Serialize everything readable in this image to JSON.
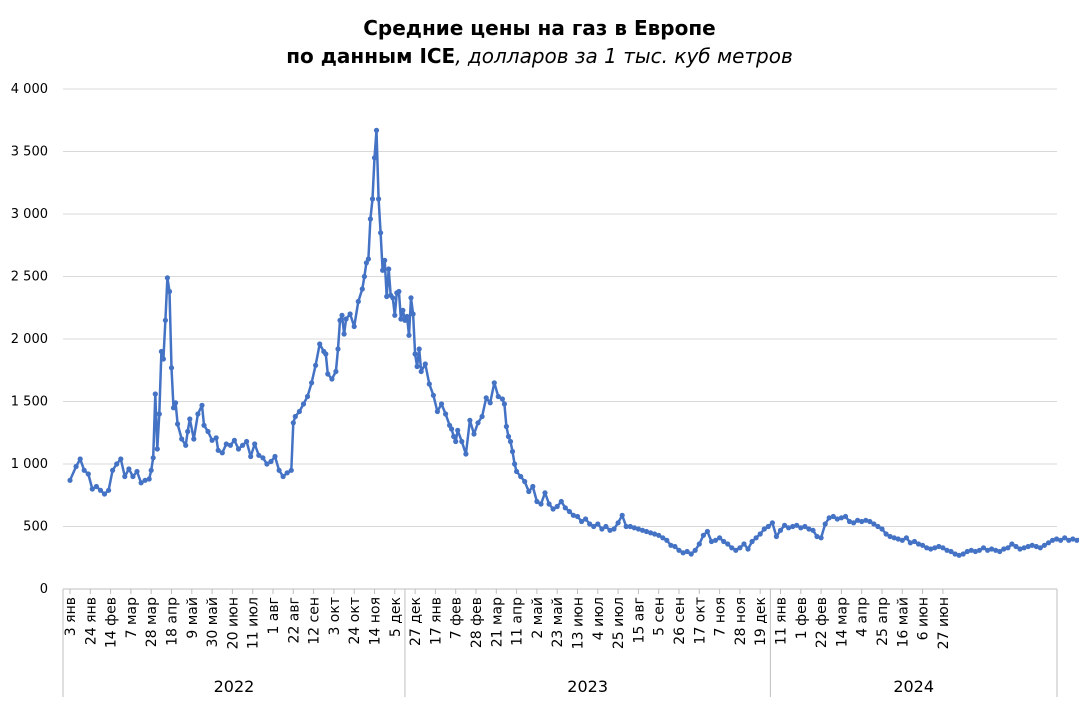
{
  "title": {
    "line1": "Средние цены на газ в Европе",
    "line2_bold": "по данным ICE",
    "line2_italic": ", долларов за 1 тыс. куб метров"
  },
  "colors": {
    "series": "#4472C4",
    "grid": "#D9D9D9",
    "axis": "#BFBFBF"
  },
  "chart_data": {
    "type": "line",
    "title": "Средние цены на газ в Европе по данным ICE, долларов за 1 тыс. куб метров",
    "xlabel": "",
    "ylabel": "",
    "ylim": [
      0,
      4000
    ],
    "yticks": [
      0,
      500,
      1000,
      1500,
      2000,
      2500,
      3000,
      3500,
      4000
    ],
    "ytick_labels": [
      "0",
      "500",
      "1 000",
      "1 500",
      "2 000",
      "2 500",
      "3 000",
      "3 500",
      "4 000"
    ],
    "grid": true,
    "legend": "none",
    "x_week_labels": [
      "3 янв",
      "24 янв",
      "14 фев",
      "7 мар",
      "28 мар",
      "18 апр",
      "9 май",
      "30 май",
      "20 июн",
      "11 июл",
      "1 авг",
      "22 авг",
      "12 сен",
      "3 окт",
      "24 окт",
      "14 ноя",
      "5 дек",
      "27 дек",
      "17 янв",
      "7 фев",
      "28 фев",
      "21 мар",
      "11 апр",
      "2 май",
      "23 май",
      "13 июн",
      "4 июл",
      "25 июл",
      "15 авг",
      "5 сен",
      "26 сен",
      "17 окт",
      "7 ноя",
      "28 ноя",
      "19 дек",
      "11 янв",
      "1 фев",
      "22 фев",
      "14 мар",
      "4 апр",
      "25 апр",
      "16 май",
      "6 июн",
      "27 июн"
    ],
    "years": [
      {
        "label": "2022",
        "from_label": 0,
        "to_label": 17
      },
      {
        "label": "2023",
        "from_label": 17,
        "to_label": 35
      },
      {
        "label": "2024",
        "from_label": 35,
        "to_label": 44
      }
    ],
    "series": [
      {
        "values": [
          [
            0,
            870
          ],
          [
            0.3,
            980
          ],
          [
            0.5,
            1040
          ],
          [
            0.7,
            950
          ],
          [
            0.9,
            920
          ],
          [
            1.1,
            800
          ],
          [
            1.3,
            820
          ],
          [
            1.5,
            790
          ],
          [
            1.7,
            760
          ],
          [
            1.9,
            790
          ],
          [
            2.1,
            950
          ],
          [
            2.3,
            1000
          ],
          [
            2.5,
            1040
          ],
          [
            2.7,
            900
          ],
          [
            2.9,
            960
          ],
          [
            3.1,
            900
          ],
          [
            3.3,
            940
          ],
          [
            3.5,
            850
          ],
          [
            3.7,
            870
          ],
          [
            3.9,
            880
          ],
          [
            4.0,
            950
          ],
          [
            4.1,
            1050
          ],
          [
            4.2,
            1560
          ],
          [
            4.3,
            1120
          ],
          [
            4.4,
            1400
          ],
          [
            4.5,
            1900
          ],
          [
            4.6,
            1840
          ],
          [
            4.7,
            2150
          ],
          [
            4.8,
            2490
          ],
          [
            4.9,
            2380
          ],
          [
            5.0,
            1770
          ],
          [
            5.1,
            1450
          ],
          [
            5.2,
            1490
          ],
          [
            5.3,
            1320
          ],
          [
            5.5,
            1200
          ],
          [
            5.7,
            1150
          ],
          [
            5.8,
            1260
          ],
          [
            5.9,
            1360
          ],
          [
            6.1,
            1200
          ],
          [
            6.3,
            1400
          ],
          [
            6.5,
            1470
          ],
          [
            6.6,
            1310
          ],
          [
            6.8,
            1260
          ],
          [
            7.0,
            1190
          ],
          [
            7.2,
            1210
          ],
          [
            7.3,
            1110
          ],
          [
            7.5,
            1090
          ],
          [
            7.7,
            1160
          ],
          [
            7.9,
            1150
          ],
          [
            8.1,
            1190
          ],
          [
            8.3,
            1120
          ],
          [
            8.5,
            1150
          ],
          [
            8.7,
            1180
          ],
          [
            8.9,
            1060
          ],
          [
            9.1,
            1160
          ],
          [
            9.3,
            1070
          ],
          [
            9.5,
            1050
          ],
          [
            9.7,
            1000
          ],
          [
            9.9,
            1020
          ],
          [
            10.1,
            1060
          ],
          [
            10.3,
            950
          ],
          [
            10.5,
            900
          ],
          [
            10.7,
            930
          ],
          [
            10.9,
            950
          ],
          [
            11.0,
            1330
          ],
          [
            11.1,
            1380
          ],
          [
            11.3,
            1420
          ],
          [
            11.5,
            1480
          ],
          [
            11.7,
            1540
          ],
          [
            11.9,
            1650
          ],
          [
            12.1,
            1790
          ],
          [
            12.3,
            1960
          ],
          [
            12.5,
            1900
          ],
          [
            12.6,
            1880
          ],
          [
            12.7,
            1720
          ],
          [
            12.9,
            1680
          ],
          [
            13.1,
            1740
          ],
          [
            13.2,
            1920
          ],
          [
            13.3,
            2150
          ],
          [
            13.4,
            2190
          ],
          [
            13.5,
            2040
          ],
          [
            13.6,
            2160
          ],
          [
            13.8,
            2200
          ],
          [
            14.0,
            2100
          ],
          [
            14.2,
            2300
          ],
          [
            14.4,
            2400
          ],
          [
            14.5,
            2500
          ],
          [
            14.6,
            2610
          ],
          [
            14.7,
            2640
          ],
          [
            14.8,
            2960
          ],
          [
            14.9,
            3120
          ],
          [
            15.0,
            3450
          ],
          [
            15.1,
            3670
          ],
          [
            15.2,
            3120
          ],
          [
            15.3,
            2850
          ],
          [
            15.4,
            2550
          ],
          [
            15.5,
            2630
          ],
          [
            15.6,
            2340
          ],
          [
            15.7,
            2560
          ],
          [
            15.8,
            2350
          ],
          [
            15.9,
            2330
          ],
          [
            16.0,
            2190
          ],
          [
            16.1,
            2370
          ],
          [
            16.2,
            2380
          ],
          [
            16.3,
            2160
          ],
          [
            16.4,
            2230
          ],
          [
            16.5,
            2150
          ],
          [
            16.6,
            2180
          ],
          [
            16.7,
            2030
          ],
          [
            16.8,
            2330
          ],
          [
            16.9,
            2200
          ],
          [
            17.0,
            1880
          ],
          [
            17.1,
            1780
          ],
          [
            17.2,
            1920
          ],
          [
            17.3,
            1740
          ],
          [
            17.5,
            1800
          ],
          [
            17.7,
            1640
          ],
          [
            17.9,
            1550
          ],
          [
            18.1,
            1420
          ],
          [
            18.3,
            1480
          ],
          [
            18.5,
            1400
          ],
          [
            18.7,
            1310
          ],
          [
            18.8,
            1280
          ],
          [
            18.9,
            1220
          ],
          [
            19.0,
            1180
          ],
          [
            19.1,
            1270
          ],
          [
            19.3,
            1180
          ],
          [
            19.5,
            1080
          ],
          [
            19.7,
            1350
          ],
          [
            19.9,
            1240
          ],
          [
            20.1,
            1330
          ],
          [
            20.3,
            1380
          ],
          [
            20.5,
            1530
          ],
          [
            20.7,
            1490
          ],
          [
            20.9,
            1650
          ],
          [
            21.1,
            1540
          ],
          [
            21.3,
            1520
          ],
          [
            21.4,
            1480
          ],
          [
            21.5,
            1300
          ],
          [
            21.6,
            1220
          ],
          [
            21.7,
            1180
          ],
          [
            21.8,
            1100
          ],
          [
            21.9,
            1000
          ],
          [
            22.0,
            940
          ],
          [
            22.2,
            900
          ],
          [
            22.4,
            860
          ],
          [
            22.6,
            780
          ],
          [
            22.8,
            820
          ],
          [
            23.0,
            700
          ],
          [
            23.2,
            680
          ],
          [
            23.4,
            770
          ],
          [
            23.6,
            680
          ],
          [
            23.8,
            640
          ],
          [
            24.0,
            660
          ],
          [
            24.2,
            700
          ],
          [
            24.4,
            650
          ],
          [
            24.6,
            620
          ],
          [
            24.8,
            590
          ],
          [
            25.0,
            580
          ],
          [
            25.2,
            540
          ],
          [
            25.4,
            560
          ],
          [
            25.6,
            520
          ],
          [
            25.8,
            500
          ],
          [
            26.0,
            520
          ],
          [
            26.2,
            480
          ],
          [
            26.4,
            500
          ],
          [
            26.6,
            470
          ],
          [
            26.8,
            480
          ],
          [
            27.0,
            530
          ],
          [
            27.2,
            590
          ],
          [
            27.4,
            500
          ],
          [
            27.6,
            500
          ],
          [
            27.8,
            490
          ],
          [
            28.0,
            480
          ],
          [
            28.2,
            470
          ],
          [
            28.4,
            460
          ],
          [
            28.6,
            450
          ],
          [
            28.8,
            440
          ],
          [
            29.0,
            430
          ],
          [
            29.2,
            410
          ],
          [
            29.4,
            390
          ],
          [
            29.6,
            350
          ],
          [
            29.8,
            340
          ],
          [
            30.0,
            310
          ],
          [
            30.2,
            290
          ],
          [
            30.4,
            300
          ],
          [
            30.6,
            280
          ],
          [
            30.8,
            310
          ],
          [
            31.0,
            360
          ],
          [
            31.2,
            430
          ],
          [
            31.4,
            460
          ],
          [
            31.6,
            380
          ],
          [
            31.8,
            390
          ],
          [
            32.0,
            410
          ],
          [
            32.2,
            380
          ],
          [
            32.4,
            360
          ],
          [
            32.6,
            330
          ],
          [
            32.8,
            310
          ],
          [
            33.0,
            330
          ],
          [
            33.2,
            360
          ],
          [
            33.4,
            320
          ],
          [
            33.6,
            380
          ],
          [
            33.8,
            410
          ],
          [
            34.0,
            440
          ],
          [
            34.2,
            480
          ],
          [
            34.4,
            500
          ],
          [
            34.6,
            530
          ],
          [
            34.8,
            420
          ],
          [
            35.0,
            470
          ],
          [
            35.2,
            510
          ],
          [
            35.4,
            490
          ],
          [
            35.6,
            500
          ],
          [
            35.8,
            510
          ],
          [
            36.0,
            490
          ],
          [
            36.2,
            500
          ],
          [
            36.4,
            480
          ],
          [
            36.6,
            470
          ],
          [
            36.8,
            420
          ],
          [
            37.0,
            410
          ],
          [
            37.2,
            520
          ],
          [
            37.4,
            570
          ],
          [
            37.6,
            580
          ],
          [
            37.8,
            560
          ],
          [
            38.0,
            570
          ],
          [
            38.2,
            580
          ],
          [
            38.4,
            540
          ],
          [
            38.6,
            530
          ],
          [
            38.8,
            550
          ],
          [
            39.0,
            540
          ],
          [
            39.2,
            550
          ],
          [
            39.4,
            540
          ],
          [
            39.6,
            520
          ],
          [
            39.8,
            500
          ],
          [
            40.0,
            480
          ],
          [
            40.2,
            440
          ],
          [
            40.4,
            420
          ],
          [
            40.6,
            410
          ],
          [
            40.8,
            400
          ],
          [
            41.0,
            390
          ],
          [
            41.2,
            410
          ],
          [
            41.4,
            370
          ],
          [
            41.6,
            380
          ],
          [
            41.8,
            360
          ],
          [
            42.0,
            350
          ],
          [
            42.2,
            330
          ],
          [
            42.4,
            320
          ],
          [
            42.6,
            330
          ],
          [
            42.8,
            340
          ],
          [
            43.0,
            330
          ],
          [
            43.2,
            310
          ],
          [
            43.4,
            300
          ],
          [
            43.6,
            280
          ],
          [
            43.8,
            270
          ],
          [
            44.0,
            280
          ],
          [
            44.2,
            300
          ],
          [
            44.4,
            310
          ],
          [
            44.6,
            300
          ],
          [
            44.8,
            310
          ],
          [
            45.0,
            330
          ],
          [
            45.2,
            310
          ],
          [
            45.4,
            320
          ],
          [
            45.6,
            310
          ],
          [
            45.8,
            300
          ],
          [
            46.0,
            320
          ],
          [
            46.2,
            330
          ],
          [
            46.4,
            360
          ],
          [
            46.6,
            340
          ],
          [
            46.8,
            320
          ],
          [
            47.0,
            330
          ],
          [
            47.2,
            340
          ],
          [
            47.4,
            350
          ],
          [
            47.6,
            340
          ],
          [
            47.8,
            330
          ],
          [
            48.0,
            350
          ],
          [
            48.2,
            370
          ],
          [
            48.4,
            390
          ],
          [
            48.6,
            400
          ],
          [
            48.8,
            390
          ],
          [
            49.0,
            410
          ],
          [
            49.2,
            390
          ],
          [
            49.4,
            400
          ],
          [
            49.6,
            390
          ],
          [
            49.8,
            400
          ],
          [
            50.0,
            390
          ],
          [
            50.2,
            380
          ],
          [
            50.4,
            385
          ],
          [
            50.6,
            370
          ],
          [
            50.8,
            360
          ]
        ]
      }
    ]
  }
}
